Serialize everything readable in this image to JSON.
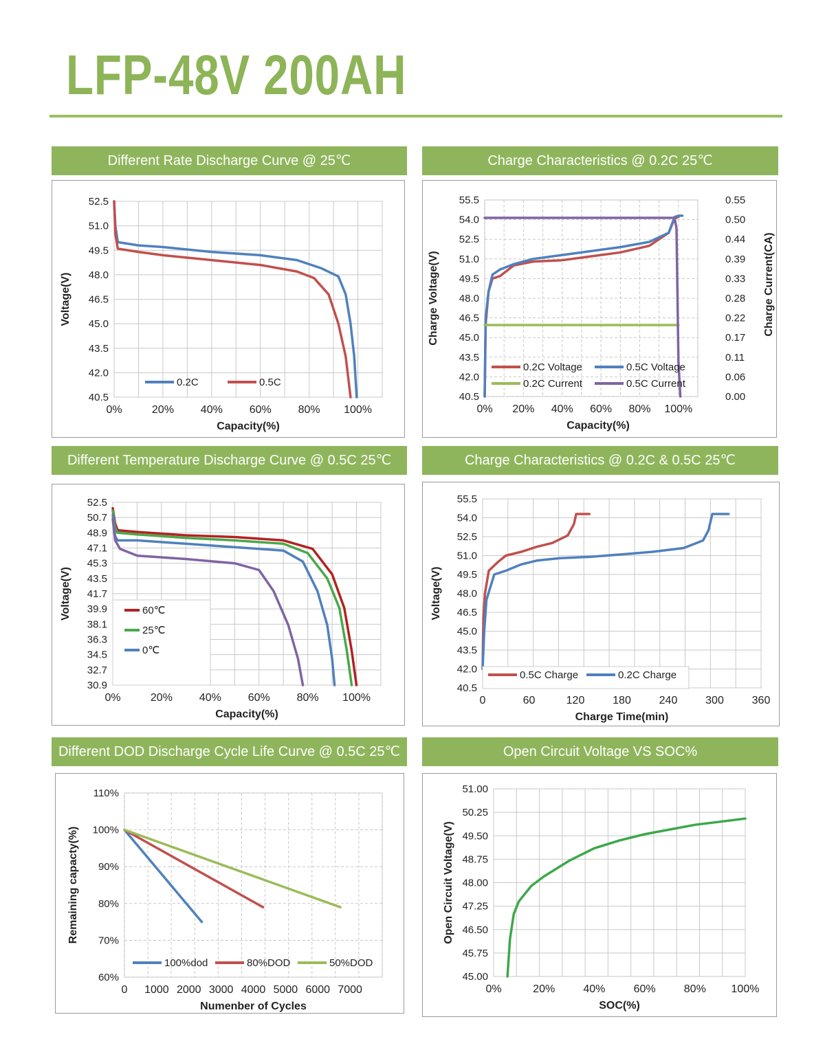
{
  "title": "LFP-48V 200AH",
  "colors": {
    "accent": "#8db457",
    "banner": "#8fb55c",
    "red": "#c0504d",
    "blue": "#4f81bd",
    "green": "#9bbb59",
    "green2": "#4aa74a",
    "purple": "#8064a2",
    "darkred": "#b22222",
    "ocv": "#3ca84a"
  },
  "panels": [
    {
      "banner": "Different Rate Discharge Curve @ 25℃"
    },
    {
      "banner": "Charge Characteristics @ 0.2C 25℃"
    },
    {
      "banner": "Different Temperature Discharge Curve @ 0.5C 25℃"
    },
    {
      "banner": "Charge Characteristics @ 0.2C & 0.5C 25℃"
    },
    {
      "banner": "Different DOD Discharge Cycle Life Curve @ 0.5C 25℃"
    },
    {
      "banner": "Open Circuit Voltage VS SOC%"
    }
  ],
  "chart_data": [
    {
      "type": "line",
      "xlabel": "Capacity(%)",
      "ylabel": "Voltage(V)",
      "xticks": [
        "0%",
        "20%",
        "40%",
        "60%",
        "80%",
        "100%"
      ],
      "yticks": [
        "52.5",
        "51.0",
        "49.5",
        "48.0",
        "46.5",
        "45.0",
        "43.5",
        "42.0",
        "40.5"
      ],
      "xlim": [
        0,
        110
      ],
      "ylim": [
        40.5,
        52.5
      ],
      "series": [
        {
          "name": "0.2C",
          "color": "#4f81bd",
          "points": [
            [
              0,
              52.5
            ],
            [
              0.5,
              51
            ],
            [
              1.5,
              50
            ],
            [
              10,
              49.8
            ],
            [
              20,
              49.7
            ],
            [
              40,
              49.4
            ],
            [
              60,
              49.2
            ],
            [
              75,
              48.9
            ],
            [
              85,
              48.4
            ],
            [
              92,
              47.9
            ],
            [
              95,
              46.8
            ],
            [
              97,
              45
            ],
            [
              98.5,
              43
            ],
            [
              99.5,
              40.5
            ]
          ]
        },
        {
          "name": "0.5C",
          "color": "#c0504d",
          "points": [
            [
              0,
              52.5
            ],
            [
              0.5,
              50.5
            ],
            [
              1.5,
              49.6
            ],
            [
              10,
              49.4
            ],
            [
              20,
              49.2
            ],
            [
              40,
              48.9
            ],
            [
              60,
              48.6
            ],
            [
              75,
              48.2
            ],
            [
              82,
              47.8
            ],
            [
              88,
              46.8
            ],
            [
              92,
              45
            ],
            [
              95,
              43
            ],
            [
              97,
              40.5
            ]
          ]
        }
      ]
    },
    {
      "type": "line",
      "xlabel": "Capacity(%)",
      "ylabel": "Charge Voltage(V)",
      "y2label": "Charge Current(CA)",
      "xticks": [
        "0%",
        "20%",
        "40%",
        "60%",
        "80%",
        "100%"
      ],
      "yticks": [
        "55.5",
        "54.0",
        "52.5",
        "51.0",
        "49.5",
        "48.0",
        "46.5",
        "45.0",
        "43.5",
        "42.0",
        "40.5"
      ],
      "y2ticks": [
        "0.55",
        "0.50",
        "0.44",
        "0.39",
        "0.33",
        "0.28",
        "0.22",
        "0.17",
        "0.11",
        "0.06",
        "0.00"
      ],
      "xlim": [
        0,
        110
      ],
      "ylim": [
        40.5,
        55.5
      ],
      "y2lim": [
        0,
        0.55
      ],
      "series": [
        {
          "name": "0.2C Voltage",
          "axis": "y",
          "color": "#c0504d",
          "points": [
            [
              0,
              40.5
            ],
            [
              0.5,
              46
            ],
            [
              2,
              48.5
            ],
            [
              4,
              49.5
            ],
            [
              8,
              49.7
            ],
            [
              15,
              50.5
            ],
            [
              25,
              50.8
            ],
            [
              40,
              50.9
            ],
            [
              55,
              51.2
            ],
            [
              70,
              51.5
            ],
            [
              85,
              52
            ],
            [
              95,
              53
            ],
            [
              98,
              54.1
            ],
            [
              100,
              54.2
            ]
          ]
        },
        {
          "name": "0.5C Voltage",
          "axis": "y",
          "color": "#4f81bd",
          "points": [
            [
              0,
              40.5
            ],
            [
              0.5,
              46.5
            ],
            [
              2,
              48.5
            ],
            [
              4,
              49.8
            ],
            [
              8,
              50.2
            ],
            [
              15,
              50.6
            ],
            [
              25,
              51
            ],
            [
              40,
              51.3
            ],
            [
              55,
              51.6
            ],
            [
              70,
              51.9
            ],
            [
              85,
              52.3
            ],
            [
              95,
              53
            ],
            [
              98,
              54.2
            ],
            [
              100,
              54.3
            ],
            [
              102,
              54.3
            ]
          ]
        },
        {
          "name": "0.2C Current",
          "axis": "y2",
          "color": "#9bbb59",
          "points": [
            [
              0,
              0.2
            ],
            [
              100,
              0.2
            ]
          ]
        },
        {
          "name": "0.5C Current",
          "axis": "y2",
          "color": "#8064a2",
          "points": [
            [
              0,
              0.5
            ],
            [
              98,
              0.5
            ],
            [
              99,
              0.47
            ],
            [
              100,
              0.1
            ],
            [
              101,
              0
            ]
          ]
        }
      ]
    },
    {
      "type": "line",
      "xlabel": "Capacity(%)",
      "ylabel": "Voltage(V)",
      "xticks": [
        "0%",
        "20%",
        "40%",
        "60%",
        "80%",
        "100%"
      ],
      "yticks": [
        "52.5",
        "50.7",
        "48.9",
        "47.1",
        "45.3",
        "43.5",
        "41.7",
        "39.9",
        "38.1",
        "36.3",
        "34.5",
        "32.7",
        "30.9"
      ],
      "xlim": [
        0,
        110
      ],
      "ylim": [
        30.9,
        52.5
      ],
      "series": [
        {
          "name": "60℃",
          "color": "#b22222",
          "points": [
            [
              0,
              51.8
            ],
            [
              1,
              50
            ],
            [
              2,
              49.2
            ],
            [
              10,
              49
            ],
            [
              30,
              48.6
            ],
            [
              50,
              48.4
            ],
            [
              70,
              48
            ],
            [
              82,
              47
            ],
            [
              90,
              44
            ],
            [
              95,
              40
            ],
            [
              98,
              35
            ],
            [
              100,
              30.9
            ]
          ]
        },
        {
          "name": "25℃",
          "color": "#4aa74a",
          "points": [
            [
              0,
              51.5
            ],
            [
              1,
              49.5
            ],
            [
              2,
              48.9
            ],
            [
              10,
              48.7
            ],
            [
              30,
              48.3
            ],
            [
              50,
              48
            ],
            [
              70,
              47.6
            ],
            [
              80,
              46.5
            ],
            [
              88,
              43.5
            ],
            [
              93,
              40
            ],
            [
              96,
              35
            ],
            [
              98,
              30.9
            ]
          ]
        },
        {
          "name": "0℃",
          "color": "#4f81bd",
          "points": [
            [
              0,
              51
            ],
            [
              1,
              48.5
            ],
            [
              2,
              48
            ],
            [
              10,
              48
            ],
            [
              30,
              47.6
            ],
            [
              50,
              47.2
            ],
            [
              70,
              46.8
            ],
            [
              78,
              45.5
            ],
            [
              84,
              42
            ],
            [
              88,
              38
            ],
            [
              90,
              34
            ],
            [
              91,
              30.9
            ]
          ]
        },
        {
          "name": "",
          "color": "#8064a2",
          "points": [
            [
              0,
              50.5
            ],
            [
              1,
              48
            ],
            [
              3,
              47
            ],
            [
              10,
              46.2
            ],
            [
              30,
              45.8
            ],
            [
              50,
              45.3
            ],
            [
              60,
              44.5
            ],
            [
              66,
              42
            ],
            [
              72,
              38
            ],
            [
              76,
              34
            ],
            [
              78,
              30.9
            ]
          ]
        }
      ]
    },
    {
      "type": "line",
      "xlabel": "Charge Time(min)",
      "ylabel": "Voltage(V)",
      "xticks": [
        "0",
        "60",
        "120",
        "180",
        "240",
        "300",
        "360"
      ],
      "yticks": [
        "55.5",
        "54.0",
        "52.5",
        "51.0",
        "49.5",
        "48.0",
        "46.5",
        "45.0",
        "43.5",
        "42.0",
        "40.5"
      ],
      "xlim": [
        0,
        360
      ],
      "ylim": [
        40.5,
        55.5
      ],
      "series": [
        {
          "name": "0.5C Charge",
          "color": "#c0504d",
          "points": [
            [
              0,
              42
            ],
            [
              1,
              46
            ],
            [
              3,
              48
            ],
            [
              8,
              49.8
            ],
            [
              20,
              50.5
            ],
            [
              30,
              51
            ],
            [
              50,
              51.3
            ],
            [
              70,
              51.7
            ],
            [
              90,
              52
            ],
            [
              110,
              52.6
            ],
            [
              118,
              53.5
            ],
            [
              121,
              54.3
            ],
            [
              138,
              54.3
            ]
          ]
        },
        {
          "name": "0.2C Charge",
          "color": "#4f81bd",
          "points": [
            [
              0,
              42
            ],
            [
              2,
              45
            ],
            [
              5,
              47.5
            ],
            [
              15,
              49.5
            ],
            [
              30,
              49.8
            ],
            [
              50,
              50.3
            ],
            [
              70,
              50.6
            ],
            [
              100,
              50.8
            ],
            [
              140,
              50.9
            ],
            [
              180,
              51.1
            ],
            [
              220,
              51.3
            ],
            [
              260,
              51.6
            ],
            [
              285,
              52.2
            ],
            [
              292,
              53
            ],
            [
              297,
              54.3
            ],
            [
              318,
              54.3
            ]
          ]
        }
      ]
    },
    {
      "type": "line",
      "xlabel": "Numenber of Cycles",
      "ylabel": "Remaining capacty(%)",
      "xticks": [
        "0",
        "1000",
        "2000",
        "3000",
        "4000",
        "5000",
        "6000",
        "7000"
      ],
      "yticks": [
        "110%",
        "100%",
        "90%",
        "80%",
        "70%",
        "60%"
      ],
      "xlim": [
        0,
        8000
      ],
      "ylim": [
        60,
        110
      ],
      "series": [
        {
          "name": "100%dod",
          "color": "#4f81bd",
          "points": [
            [
              0,
              100
            ],
            [
              2400,
              75
            ]
          ]
        },
        {
          "name": "80%DOD",
          "color": "#c0504d",
          "points": [
            [
              0,
              100
            ],
            [
              4300,
              79
            ]
          ]
        },
        {
          "name": "50%DOD",
          "color": "#9bbb59",
          "points": [
            [
              0,
              100
            ],
            [
              6700,
              79
            ]
          ]
        }
      ]
    },
    {
      "type": "line",
      "xlabel": "SOC(%)",
      "ylabel": "Open Circuit Voltage(V)",
      "xticks": [
        "0%",
        "20%",
        "40%",
        "60%",
        "80%",
        "100%"
      ],
      "yticks": [
        "51.00",
        "50.25",
        "49.50",
        "48.75",
        "48.00",
        "47.25",
        "46.50",
        "45.75",
        "45.00"
      ],
      "xlim": [
        0,
        100
      ],
      "ylim": [
        45,
        51
      ],
      "series": [
        {
          "name": "",
          "color": "#3ca84a",
          "points": [
            [
              5.5,
              45
            ],
            [
              6.5,
              46.2
            ],
            [
              8,
              47
            ],
            [
              10,
              47.4
            ],
            [
              15,
              47.9
            ],
            [
              20,
              48.2
            ],
            [
              30,
              48.7
            ],
            [
              40,
              49.1
            ],
            [
              50,
              49.35
            ],
            [
              60,
              49.55
            ],
            [
              70,
              49.7
            ],
            [
              80,
              49.85
            ],
            [
              90,
              49.95
            ],
            [
              100,
              50.05
            ]
          ]
        }
      ]
    }
  ]
}
